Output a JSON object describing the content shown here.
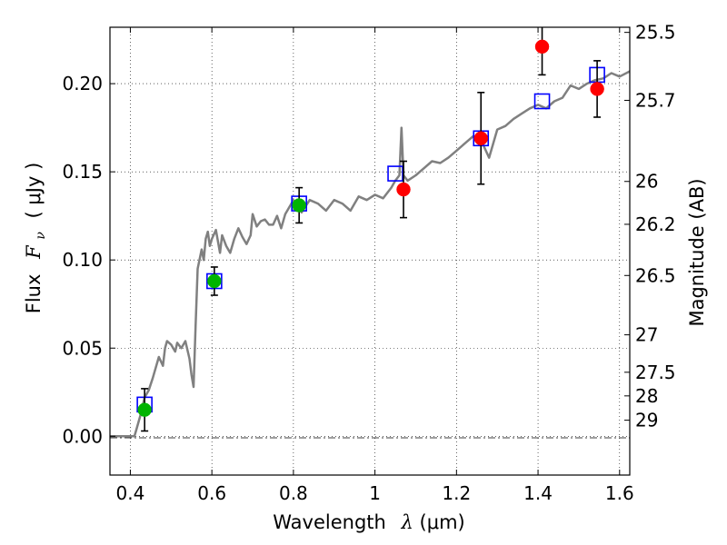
{
  "chart_data": {
    "type": "scatter",
    "title": "",
    "xlabel": {
      "prefix": "Wavelength",
      "symbol": "λ",
      "unit": " (μm)"
    },
    "ylabel": {
      "prefix": "Flux",
      "symbol": "F",
      "subscript": "ν",
      "unit": "( μJy )"
    },
    "y2label": "Magnitude (AB)",
    "xlim": [
      0.35,
      1.625
    ],
    "ylim": [
      -0.022,
      0.232
    ],
    "grid": true,
    "x_ticks": [
      {
        "v": 0.4,
        "label": "0.4"
      },
      {
        "v": 0.6,
        "label": "0.6"
      },
      {
        "v": 0.8,
        "label": "0.8"
      },
      {
        "v": 1.0,
        "label": "1"
      },
      {
        "v": 1.2,
        "label": "1.2"
      },
      {
        "v": 1.4,
        "label": "1.4"
      },
      {
        "v": 1.6,
        "label": "1.6"
      }
    ],
    "y_ticks": [
      {
        "v": 0.0,
        "label": "0.00"
      },
      {
        "v": 0.05,
        "label": "0.05"
      },
      {
        "v": 0.1,
        "label": "0.10"
      },
      {
        "v": 0.15,
        "label": "0.15"
      },
      {
        "v": 0.2,
        "label": "0.20"
      }
    ],
    "mag_ticks": [
      {
        "mag": 25.5,
        "label": "25.5"
      },
      {
        "mag": 25.7,
        "label": "25.7"
      },
      {
        "mag": 26,
        "label": "26"
      },
      {
        "mag": 26.2,
        "label": "26.2"
      },
      {
        "mag": 26.5,
        "label": "26.5"
      },
      {
        "mag": 27,
        "label": "27"
      },
      {
        "mag": 27.5,
        "label": "27.5"
      },
      {
        "mag": 28,
        "label": "28"
      },
      {
        "mag": 29,
        "label": "29"
      }
    ],
    "series": [
      {
        "name": "model_spectrum",
        "kind": "line",
        "color": "#808080",
        "x": [
          0.35,
          0.38,
          0.41,
          0.415,
          0.425,
          0.435,
          0.445,
          0.455,
          0.47,
          0.48,
          0.485,
          0.49,
          0.5,
          0.51,
          0.515,
          0.525,
          0.535,
          0.545,
          0.55,
          0.555,
          0.56,
          0.565,
          0.575,
          0.58,
          0.585,
          0.59,
          0.595,
          0.6,
          0.61,
          0.62,
          0.625,
          0.635,
          0.645,
          0.655,
          0.665,
          0.675,
          0.685,
          0.695,
          0.7,
          0.71,
          0.72,
          0.73,
          0.74,
          0.75,
          0.76,
          0.77,
          0.78,
          0.79,
          0.8,
          0.82,
          0.84,
          0.86,
          0.88,
          0.9,
          0.92,
          0.94,
          0.96,
          0.98,
          1.0,
          1.02,
          1.04,
          1.05,
          1.06,
          1.065,
          1.07,
          1.08,
          1.1,
          1.12,
          1.14,
          1.16,
          1.18,
          1.2,
          1.22,
          1.24,
          1.26,
          1.28,
          1.3,
          1.32,
          1.34,
          1.36,
          1.38,
          1.4,
          1.42,
          1.44,
          1.46,
          1.48,
          1.5,
          1.52,
          1.54,
          1.56,
          1.58,
          1.6,
          1.625
        ],
        "y": [
          0.0,
          0.0,
          0.0,
          0.004,
          0.012,
          0.022,
          0.026,
          0.033,
          0.045,
          0.04,
          0.05,
          0.054,
          0.052,
          0.048,
          0.053,
          0.05,
          0.054,
          0.044,
          0.035,
          0.028,
          0.062,
          0.095,
          0.106,
          0.1,
          0.112,
          0.116,
          0.108,
          0.112,
          0.117,
          0.104,
          0.114,
          0.108,
          0.104,
          0.112,
          0.118,
          0.113,
          0.109,
          0.114,
          0.126,
          0.119,
          0.122,
          0.123,
          0.12,
          0.12,
          0.125,
          0.118,
          0.126,
          0.13,
          0.134,
          0.127,
          0.134,
          0.132,
          0.128,
          0.134,
          0.132,
          0.128,
          0.136,
          0.134,
          0.137,
          0.135,
          0.141,
          0.145,
          0.148,
          0.175,
          0.148,
          0.145,
          0.148,
          0.152,
          0.156,
          0.155,
          0.158,
          0.162,
          0.166,
          0.17,
          0.168,
          0.158,
          0.174,
          0.176,
          0.18,
          0.183,
          0.186,
          0.188,
          0.186,
          0.19,
          0.192,
          0.199,
          0.197,
          0.2,
          0.202,
          0.203,
          0.206,
          0.204,
          0.207
        ]
      },
      {
        "name": "model_photometry",
        "kind": "open_square",
        "color": "#0000ff",
        "points": [
          {
            "x": 0.435,
            "y": 0.018
          },
          {
            "x": 0.606,
            "y": 0.088
          },
          {
            "x": 0.814,
            "y": 0.132
          },
          {
            "x": 1.05,
            "y": 0.149
          },
          {
            "x": 1.26,
            "y": 0.169
          },
          {
            "x": 1.41,
            "y": 0.19
          },
          {
            "x": 1.545,
            "y": 0.205
          }
        ]
      },
      {
        "name": "optical_observed",
        "kind": "filled_circle",
        "color": "#00b400",
        "points": [
          {
            "x": 0.435,
            "y": 0.015,
            "err": 0.012
          },
          {
            "x": 0.606,
            "y": 0.088,
            "err": 0.008
          },
          {
            "x": 0.814,
            "y": 0.131,
            "err": 0.01
          }
        ]
      },
      {
        "name": "nir_observed",
        "kind": "filled_circle",
        "color": "#ff0000",
        "points": [
          {
            "x": 1.07,
            "y": 0.14,
            "err": 0.016
          },
          {
            "x": 1.26,
            "y": 0.169,
            "err": 0.026
          },
          {
            "x": 1.41,
            "y": 0.221,
            "err": 0.016
          },
          {
            "x": 1.545,
            "y": 0.197,
            "err": 0.016
          }
        ]
      }
    ]
  }
}
